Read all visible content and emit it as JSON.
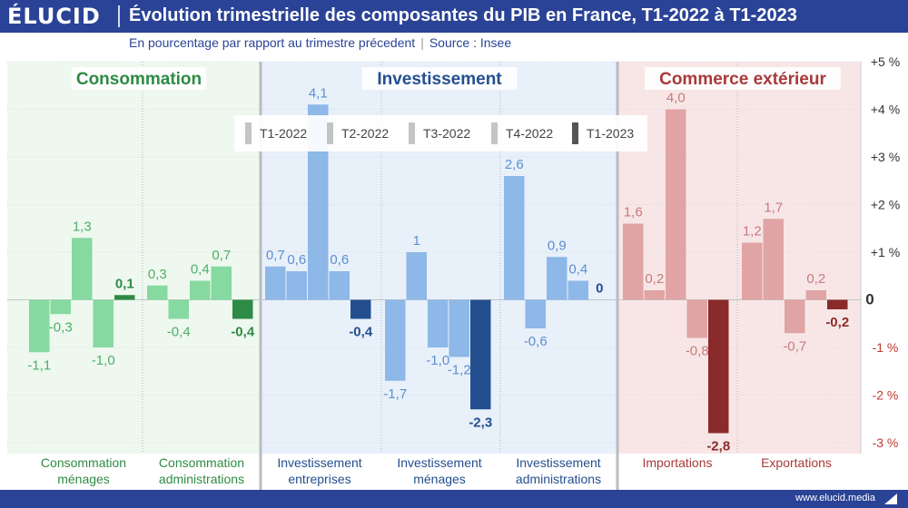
{
  "header": {
    "logo": "ÉLUCID",
    "title": "Évolution trimestrielle des composantes du PIB en France, T1-2022 à T1-2023",
    "subtitle_main": "En pourcentage par rapport au trimestre précedent",
    "subtitle_separator": "|",
    "subtitle_source": "Source : Insee"
  },
  "footer": {
    "website": "www.elucid.media"
  },
  "colors": {
    "brand": "#2a4396",
    "consommation_light": "#86d9a0",
    "consommation_dark": "#2e8b45",
    "investissement_light": "#8db8e8",
    "investissement_dark": "#244f8f",
    "commerce_light": "#e0a4a4",
    "commerce_dark": "#8b2a2a",
    "consommation_bg": "#eef8ee",
    "investissement_bg": "#e8f0fa",
    "commerce_bg": "#f8e6e6"
  },
  "chart_data": {
    "type": "bar",
    "y_unit": "%",
    "ylim": [
      -3,
      5
    ],
    "y_ticks": [
      {
        "value": 5,
        "label": "+5 %"
      },
      {
        "value": 4,
        "label": "+4 %"
      },
      {
        "value": 3,
        "label": "+3 %"
      },
      {
        "value": 2,
        "label": "+2 %"
      },
      {
        "value": 1,
        "label": "+1 %"
      },
      {
        "value": 0,
        "label": "0"
      },
      {
        "value": -1,
        "label": "-1 %"
      },
      {
        "value": -2,
        "label": "-2 %"
      },
      {
        "value": -3,
        "label": "-3 %"
      }
    ],
    "grid": true,
    "legend_position": "top-center",
    "legend": [
      "T1-2022",
      "T2-2022",
      "T3-2022",
      "T4-2022",
      "T1-2023"
    ],
    "sections": [
      {
        "name": "Consommation",
        "theme": "consommation"
      },
      {
        "name": "Investissement",
        "theme": "investissement"
      },
      {
        "name": "Commerce extérieur",
        "theme": "commerce"
      }
    ],
    "categories": [
      {
        "name": "Consommation ménages",
        "label_lines": [
          "Consommation",
          "ménages"
        ],
        "section": 0,
        "values": [
          -1.1,
          -0.3,
          1.3,
          -1.0,
          0.1
        ],
        "labels": [
          "-1,1",
          "-0,3",
          "1,3",
          "-1,0",
          "0,1"
        ]
      },
      {
        "name": "Consommation administrations",
        "label_lines": [
          "Consommation",
          "administrations"
        ],
        "section": 0,
        "values": [
          0.3,
          -0.4,
          0.4,
          0.7,
          -0.4
        ],
        "labels": [
          "0,3",
          "-0,4",
          "0,4",
          "0,7",
          "-0,4"
        ]
      },
      {
        "name": "Investissement entreprises",
        "label_lines": [
          "Investissement",
          "entreprises"
        ],
        "section": 1,
        "values": [
          0.7,
          0.6,
          4.1,
          0.6,
          -0.4
        ],
        "labels": [
          "0,7",
          "0,6",
          "4,1",
          "0,6",
          "-0,4"
        ]
      },
      {
        "name": "Investissement ménages",
        "label_lines": [
          "Investissement",
          "ménages"
        ],
        "section": 1,
        "values": [
          -1.7,
          1.0,
          -1.0,
          -1.2,
          -2.3
        ],
        "labels": [
          "-1,7",
          "1",
          "-1,0",
          "-1,2",
          "-2,3"
        ]
      },
      {
        "name": "Investissement administrations",
        "label_lines": [
          "Investissement",
          "administrations"
        ],
        "section": 1,
        "values": [
          2.6,
          -0.6,
          0.9,
          0.4,
          0.0
        ],
        "labels": [
          "2,6",
          "-0,6",
          "0,9",
          "0,4",
          "0"
        ]
      },
      {
        "name": "Importations",
        "label_lines": [
          "Importations"
        ],
        "section": 2,
        "values": [
          1.6,
          0.2,
          4.0,
          -0.8,
          -2.8
        ],
        "labels": [
          "1,6",
          "0,2",
          "4,0",
          "-0,8",
          "-2,8"
        ]
      },
      {
        "name": "Exportations",
        "label_lines": [
          "Exportations"
        ],
        "section": 2,
        "values": [
          1.2,
          1.7,
          -0.7,
          0.2,
          -0.2
        ],
        "labels": [
          "1,2",
          "1,7",
          "-0,7",
          "0,2",
          "-0,2"
        ]
      }
    ]
  }
}
